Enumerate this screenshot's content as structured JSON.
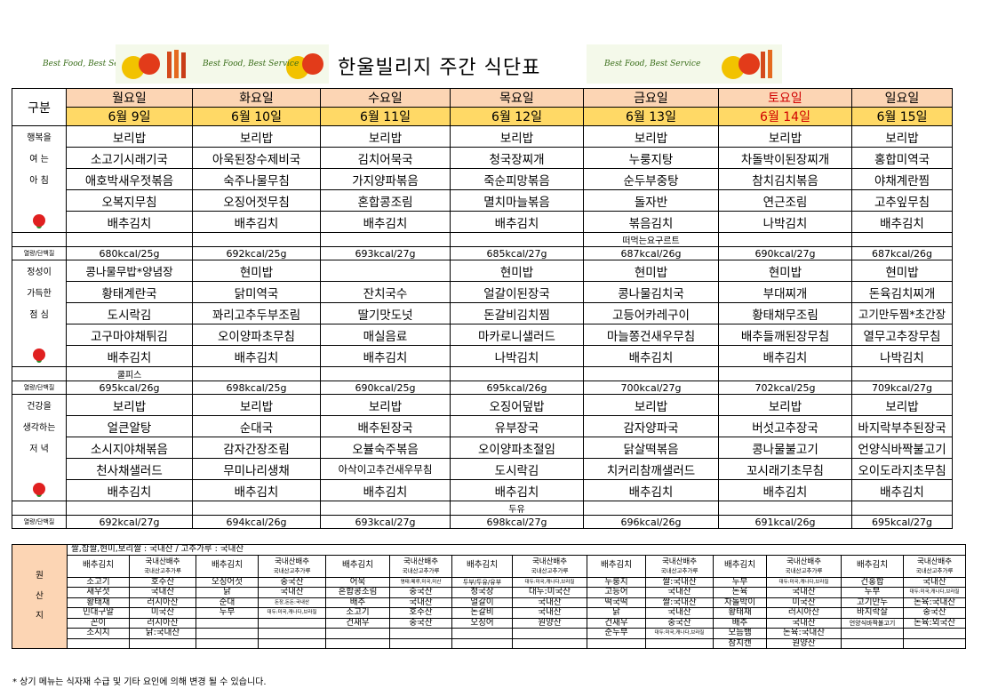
{
  "title": "한울빌리지 주간 식단표",
  "banner_text": "Best Food, Best Service",
  "header_label": "구분",
  "days": [
    {
      "name": "월요일",
      "date": "6월 9일",
      "weekend": false
    },
    {
      "name": "화요일",
      "date": "6월 10일",
      "weekend": false
    },
    {
      "name": "수요일",
      "date": "6월 11일",
      "weekend": false
    },
    {
      "name": "목요일",
      "date": "6월 12일",
      "weekend": false
    },
    {
      "name": "금요일",
      "date": "6월 13일",
      "weekend": false
    },
    {
      "name": "토요일",
      "date": "6월 14일",
      "weekend": true
    },
    {
      "name": "일요일",
      "date": "6월 15일",
      "weekend": false
    }
  ],
  "kcal_label": "열량/단백질",
  "meals": [
    {
      "side_labels": [
        "행복을",
        "여 는",
        "아 침"
      ],
      "rows": [
        [
          "보리밥",
          "보리밥",
          "보리밥",
          "보리밥",
          "보리밥",
          "보리밥",
          "보리밥"
        ],
        [
          "소고기시래기국",
          "아욱된장수제비국",
          "김치어묵국",
          "청국장찌개",
          "누룽지탕",
          "차돌박이된장찌개",
          "홍합미역국"
        ],
        [
          "애호박새우젓볶음",
          "숙주나물무침",
          "가지양파볶음",
          "죽순피망볶음",
          "순두부중탕",
          "참치김치볶음",
          "야채계란찜"
        ],
        [
          "오복지무침",
          "오징어젓무침",
          "혼합콩조림",
          "멸치마늘볶음",
          "돌자반",
          "연근조림",
          "고추잎무침"
        ],
        [
          "배추김치",
          "배추김치",
          "배추김치",
          "배추김치",
          "볶음김치",
          "나박김치",
          "배추김치"
        ]
      ],
      "extra": [
        "",
        "",
        "",
        "",
        "떠먹는요구르트",
        "",
        ""
      ],
      "kcal": [
        "680kcal/25g",
        "692kcal/25g",
        "693kcal/27g",
        "685kcal/27g",
        "687kcal/26g",
        "690kcal/27g",
        "687kcal/26g"
      ]
    },
    {
      "side_labels": [
        "정성이",
        "가득한",
        "점 심"
      ],
      "rows": [
        [
          "콩나물무밥*양념장",
          "현미밥",
          "",
          "현미밥",
          "현미밥",
          "현미밥",
          "현미밥"
        ],
        [
          "황태계란국",
          "닭미역국",
          "잔치국수",
          "얼갈이된장국",
          "콩나물김치국",
          "부대찌개",
          "돈육김치찌개"
        ],
        [
          "도시락김",
          "꽈리고추두부조림",
          "딸기맛도넛",
          "돈갈비김치찜",
          "고등어카레구이",
          "황태채무조림",
          "고기만두찜*초간장"
        ],
        [
          "고구마야채튀김",
          "오이양파초무침",
          "매실음료",
          "마카로니샐러드",
          "마늘쫑건새우무침",
          "배추들깨된장무침",
          "열무고추장무침"
        ],
        [
          "배추김치",
          "배추김치",
          "배추김치",
          "나박김치",
          "배추김치",
          "배추김치",
          "나박김치"
        ]
      ],
      "extra": [
        "쿨피스",
        "",
        "",
        "",
        "",
        "",
        ""
      ],
      "kcal": [
        "695kcal/26g",
        "698kcal/25g",
        "690kcal/25g",
        "695kcal/26g",
        "700kcal/27g",
        "702kcal/25g",
        "709kcal/27g"
      ]
    },
    {
      "side_labels": [
        "건강을",
        "생각하는",
        "저 녁"
      ],
      "rows": [
        [
          "보리밥",
          "보리밥",
          "보리밥",
          "오징어덮밥",
          "보리밥",
          "보리밥",
          "보리밥"
        ],
        [
          "얼큰알탕",
          "순대국",
          "배추된장국",
          "유부장국",
          "감자양파국",
          "버섯고추장국",
          "바지락부추된장국"
        ],
        [
          "소시지야채볶음",
          "감자간장조림",
          "오뷸숙주볶음",
          "오이양파초절임",
          "닭살떡볶음",
          "콩나물불고기",
          "언양식바짝불고기"
        ],
        [
          "천사채샐러드",
          "무미나리생채",
          "아삭이고추건새우무침",
          "도시락김",
          "치커리참깨샐러드",
          "꼬시래기초무침",
          "오이도라지초무침"
        ],
        [
          "배추김치",
          "배추김치",
          "배추김치",
          "배추김치",
          "배추김치",
          "배추김치",
          "배추김치"
        ]
      ],
      "extra": [
        "",
        "",
        "",
        "두유",
        "",
        "",
        ""
      ],
      "kcal": [
        "692kcal/27g",
        "694kcal/26g",
        "693kcal/27g",
        "698kcal/27g",
        "696kcal/26g",
        "691kcal/26g",
        "695kcal/27g"
      ]
    }
  ],
  "origin": {
    "label": [
      "원",
      "산",
      "지"
    ],
    "note_row": "쌀,찹쌀,현미,보리쌀 : 국내산 / 고추가루 : 국내산",
    "head": [
      "배추김치",
      "국내산배추\n국내산고추가루",
      "배추김치",
      "국내산배추\n국내산고추가루",
      "배추김치",
      "국내산배추\n국내산고추가루",
      "배추김치",
      "국내산배추\n국내산고추가루",
      "배추김치",
      "국내산배추\n국내산고추가루",
      "배추김치",
      "국내산배추\n국내산고추가루",
      "배추김치",
      "국내산배추\n국내산고추가루"
    ],
    "rows": [
      [
        "소고기",
        "호주산",
        "오징어젓",
        "중국산",
        "어묵",
        "명태:페루,미국,미산",
        "두부/두유/유부",
        "대두:미국,캐나다,브라질",
        "누룽지",
        "쌀:국내산",
        "두부",
        "대두:미국,캐나다,브라질",
        "건홍합",
        "국내산"
      ],
      [
        "새우젓",
        "국내산",
        "닭",
        "국내산",
        "혼합콩조림",
        "중국산",
        "청국장",
        "대두:미국산",
        "고등어",
        "국내산",
        "돈육",
        "국내산",
        "두부",
        "대두:미국,캐나다,브라질"
      ],
      [
        "황태채",
        "러시아산",
        "순대",
        "돈장,돈돈:국내산",
        "배추",
        "국내산",
        "얼갈이",
        "국내산",
        "떡국떡",
        "쌀:국내산",
        "차돌박이",
        "미국산",
        "고기만두",
        "돈육:국내산"
      ],
      [
        "민대구알",
        "미국산",
        "두부",
        "대두:미국,캐나다,브라질",
        "소고기",
        "호주산",
        "돈갈비",
        "국내산",
        "닭",
        "국내산",
        "황태채",
        "러시아산",
        "바지락살",
        "중국산"
      ],
      [
        "꼰이",
        "러시아산",
        "",
        "",
        "건새우",
        "중국산",
        "오징어",
        "원양산",
        "건새우",
        "중국산",
        "배추",
        "국내산",
        "언양식바짝불고기",
        "돈육:외국산"
      ],
      [
        "소시지",
        "닭:국내산",
        "",
        "",
        "",
        "",
        "",
        "",
        "순두부",
        "대두:미국,캐나다,브라질",
        "모듬햄",
        "돈육:국내산",
        "",
        ""
      ],
      [
        "",
        "",
        "",
        "",
        "",
        "",
        "",
        "",
        "",
        "",
        "참치캔",
        "원양산",
        "",
        ""
      ]
    ]
  },
  "footnote": "* 상기 메뉴는 식자재 수급 및 기타 요인에 의해 변경 될 수 있습니다."
}
